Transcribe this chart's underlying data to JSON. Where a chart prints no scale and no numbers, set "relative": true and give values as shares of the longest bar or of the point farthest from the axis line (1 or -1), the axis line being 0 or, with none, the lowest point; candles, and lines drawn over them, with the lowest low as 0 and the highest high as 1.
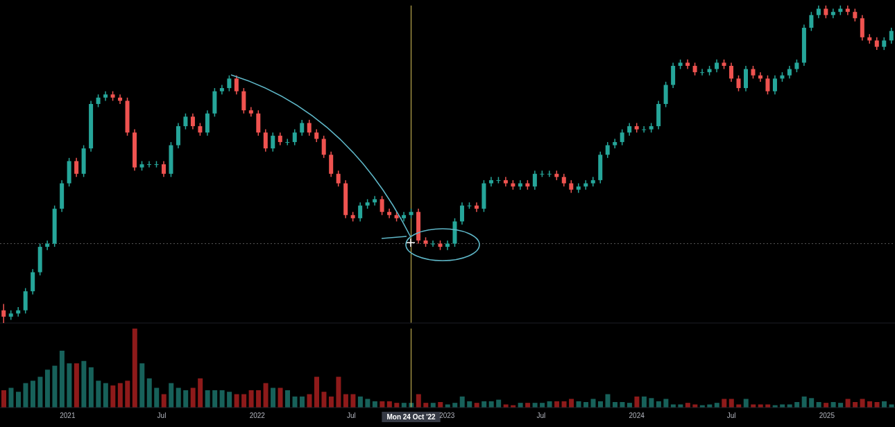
{
  "chart_data": [
    {
      "type": "candlestick",
      "relative": true,
      "x": [
        "2020-08-31",
        "2020-09-14",
        "2020-09-28",
        "2020-10-12",
        "2020-10-26",
        "2020-11-09",
        "2020-11-23",
        "2020-12-07",
        "2020-12-21",
        "2021-01-04",
        "2021-01-18",
        "2021-02-01",
        "2021-02-15",
        "2021-03-01",
        "2021-03-15",
        "2021-03-29",
        "2021-04-12",
        "2021-04-26",
        "2021-05-10",
        "2021-05-24",
        "2021-06-07",
        "2021-06-21",
        "2021-07-05",
        "2021-07-19",
        "2021-08-02",
        "2021-08-16",
        "2021-08-30",
        "2021-09-13",
        "2021-09-27",
        "2021-10-11",
        "2021-10-25",
        "2021-11-08",
        "2021-11-22",
        "2021-12-06",
        "2021-12-20",
        "2022-01-03",
        "2022-01-17",
        "2022-01-31",
        "2022-02-14",
        "2022-02-28",
        "2022-03-14",
        "2022-03-28",
        "2022-04-11",
        "2022-04-25",
        "2022-05-09",
        "2022-05-23",
        "2022-06-06",
        "2022-06-20",
        "2022-07-04",
        "2022-07-18",
        "2022-08-01",
        "2022-08-15",
        "2022-08-29",
        "2022-09-12",
        "2022-09-26",
        "2022-10-10",
        "2022-10-24",
        "2022-11-07",
        "2022-11-21",
        "2022-12-05",
        "2022-12-19",
        "2023-01-02",
        "2023-01-16",
        "2023-01-30",
        "2023-02-13",
        "2023-02-27",
        "2023-03-13",
        "2023-03-27",
        "2023-04-10",
        "2023-04-24",
        "2023-05-08",
        "2023-05-22",
        "2023-06-05",
        "2023-06-19",
        "2023-07-03",
        "2023-07-17",
        "2023-07-31",
        "2023-08-14",
        "2023-08-28",
        "2023-09-11",
        "2023-09-25",
        "2023-10-09",
        "2023-10-23",
        "2023-11-06",
        "2023-11-20",
        "2023-12-04",
        "2023-12-18",
        "2024-01-01",
        "2024-01-15",
        "2024-01-29",
        "2024-02-12",
        "2024-02-26",
        "2024-03-11",
        "2024-03-25",
        "2024-04-08",
        "2024-04-22",
        "2024-05-06",
        "2024-05-20",
        "2024-06-03",
        "2024-06-17",
        "2024-07-01",
        "2024-07-15",
        "2024-07-29",
        "2024-08-12",
        "2024-08-26",
        "2024-09-09",
        "2024-09-23",
        "2024-10-07",
        "2024-10-21",
        "2024-11-04",
        "2024-11-18",
        "2024-12-02",
        "2024-12-16",
        "2024-12-30",
        "2025-01-13",
        "2025-01-27",
        "2025-02-10",
        "2025-02-24",
        "2025-03-10",
        "2025-03-24",
        "2025-04-07",
        "2025-04-21",
        "2025-05-05"
      ],
      "ohlc": [
        [
          0.04,
          0.06,
          0,
          0.02
        ],
        [
          0.02,
          0.04,
          0.01,
          0.03
        ],
        [
          0.03,
          0.05,
          0.02,
          0.04
        ],
        [
          0.04,
          0.11,
          0.03,
          0.1
        ],
        [
          0.1,
          0.17,
          0.09,
          0.16
        ],
        [
          0.16,
          0.25,
          0.15,
          0.24
        ],
        [
          0.24,
          0.26,
          0.23,
          0.25
        ],
        [
          0.25,
          0.37,
          0.24,
          0.36
        ],
        [
          0.36,
          0.45,
          0.35,
          0.44
        ],
        [
          0.44,
          0.52,
          0.43,
          0.51
        ],
        [
          0.51,
          0.52,
          0.46,
          0.47
        ],
        [
          0.47,
          0.56,
          0.46,
          0.55
        ],
        [
          0.55,
          0.7,
          0.54,
          0.69
        ],
        [
          0.69,
          0.72,
          0.68,
          0.71
        ],
        [
          0.71,
          0.73,
          0.7,
          0.72
        ],
        [
          0.72,
          0.73,
          0.7,
          0.71
        ],
        [
          0.71,
          0.72,
          0.69,
          0.7
        ],
        [
          0.7,
          0.71,
          0.59,
          0.6
        ],
        [
          0.6,
          0.61,
          0.48,
          0.49
        ],
        [
          0.49,
          0.51,
          0.48,
          0.5
        ],
        [
          0.5,
          0.51,
          0.49,
          0.5
        ],
        [
          0.5,
          0.51,
          0.49,
          0.5
        ],
        [
          0.5,
          0.51,
          0.46,
          0.47
        ],
        [
          0.47,
          0.57,
          0.46,
          0.56
        ],
        [
          0.56,
          0.63,
          0.55,
          0.62
        ],
        [
          0.62,
          0.66,
          0.61,
          0.65
        ],
        [
          0.65,
          0.66,
          0.61,
          0.62
        ],
        [
          0.62,
          0.63,
          0.59,
          0.6
        ],
        [
          0.6,
          0.67,
          0.59,
          0.66
        ],
        [
          0.66,
          0.74,
          0.65,
          0.73
        ],
        [
          0.73,
          0.75,
          0.72,
          0.74
        ],
        [
          0.74,
          0.78,
          0.73,
          0.77
        ],
        [
          0.77,
          0.78,
          0.72,
          0.73
        ],
        [
          0.73,
          0.74,
          0.66,
          0.67
        ],
        [
          0.67,
          0.68,
          0.65,
          0.66
        ],
        [
          0.66,
          0.67,
          0.59,
          0.6
        ],
        [
          0.6,
          0.61,
          0.54,
          0.55
        ],
        [
          0.55,
          0.6,
          0.54,
          0.59
        ],
        [
          0.59,
          0.6,
          0.56,
          0.57
        ],
        [
          0.57,
          0.58,
          0.56,
          0.57
        ],
        [
          0.57,
          0.61,
          0.56,
          0.6
        ],
        [
          0.6,
          0.64,
          0.59,
          0.63
        ],
        [
          0.63,
          0.64,
          0.59,
          0.6
        ],
        [
          0.6,
          0.61,
          0.57,
          0.58
        ],
        [
          0.58,
          0.59,
          0.52,
          0.53
        ],
        [
          0.53,
          0.54,
          0.46,
          0.47
        ],
        [
          0.47,
          0.48,
          0.43,
          0.44
        ],
        [
          0.44,
          0.45,
          0.33,
          0.34
        ],
        [
          0.34,
          0.35,
          0.32,
          0.33
        ],
        [
          0.33,
          0.38,
          0.32,
          0.37
        ],
        [
          0.37,
          0.39,
          0.36,
          0.38
        ],
        [
          0.38,
          0.4,
          0.37,
          0.39
        ],
        [
          0.39,
          0.4,
          0.34,
          0.35
        ],
        [
          0.35,
          0.36,
          0.33,
          0.34
        ],
        [
          0.34,
          0.35,
          0.32,
          0.33
        ],
        [
          0.33,
          0.35,
          0.32,
          0.34
        ],
        [
          0.34,
          0.36,
          0.33,
          0.35
        ],
        [
          0.35,
          0.36,
          0.25,
          0.26
        ],
        [
          0.26,
          0.27,
          0.24,
          0.25
        ],
        [
          0.25,
          0.26,
          0.24,
          0.25
        ],
        [
          0.25,
          0.26,
          0.23,
          0.24
        ],
        [
          0.24,
          0.26,
          0.23,
          0.25
        ],
        [
          0.25,
          0.33,
          0.24,
          0.32
        ],
        [
          0.32,
          0.38,
          0.31,
          0.37
        ],
        [
          0.37,
          0.38,
          0.36,
          0.37
        ],
        [
          0.37,
          0.38,
          0.35,
          0.36
        ],
        [
          0.36,
          0.45,
          0.35,
          0.44
        ],
        [
          0.44,
          0.46,
          0.43,
          0.45
        ],
        [
          0.45,
          0.46,
          0.44,
          0.45
        ],
        [
          0.45,
          0.46,
          0.43,
          0.44
        ],
        [
          0.44,
          0.45,
          0.42,
          0.43
        ],
        [
          0.43,
          0.45,
          0.42,
          0.44
        ],
        [
          0.44,
          0.45,
          0.42,
          0.43
        ],
        [
          0.43,
          0.48,
          0.42,
          0.47
        ],
        [
          0.47,
          0.48,
          0.46,
          0.47
        ],
        [
          0.47,
          0.48,
          0.46,
          0.47
        ],
        [
          0.47,
          0.48,
          0.45,
          0.46
        ],
        [
          0.46,
          0.47,
          0.43,
          0.44
        ],
        [
          0.44,
          0.45,
          0.41,
          0.42
        ],
        [
          0.42,
          0.44,
          0.41,
          0.43
        ],
        [
          0.43,
          0.45,
          0.42,
          0.44
        ],
        [
          0.44,
          0.46,
          0.43,
          0.45
        ],
        [
          0.45,
          0.54,
          0.44,
          0.53
        ],
        [
          0.53,
          0.57,
          0.52,
          0.56
        ],
        [
          0.56,
          0.58,
          0.55,
          0.57
        ],
        [
          0.57,
          0.61,
          0.56,
          0.6
        ],
        [
          0.6,
          0.63,
          0.59,
          0.62
        ],
        [
          0.62,
          0.63,
          0.6,
          0.61
        ],
        [
          0.61,
          0.62,
          0.6,
          0.61
        ],
        [
          0.61,
          0.63,
          0.6,
          0.62
        ],
        [
          0.62,
          0.7,
          0.61,
          0.69
        ],
        [
          0.69,
          0.76,
          0.68,
          0.75
        ],
        [
          0.75,
          0.82,
          0.74,
          0.81
        ],
        [
          0.81,
          0.83,
          0.8,
          0.82
        ],
        [
          0.82,
          0.83,
          0.8,
          0.81
        ],
        [
          0.81,
          0.82,
          0.78,
          0.79
        ],
        [
          0.79,
          0.8,
          0.78,
          0.79
        ],
        [
          0.79,
          0.81,
          0.78,
          0.8
        ],
        [
          0.8,
          0.83,
          0.79,
          0.82
        ],
        [
          0.82,
          0.83,
          0.8,
          0.81
        ],
        [
          0.81,
          0.82,
          0.76,
          0.77
        ],
        [
          0.77,
          0.78,
          0.73,
          0.74
        ],
        [
          0.74,
          0.81,
          0.73,
          0.8
        ],
        [
          0.8,
          0.81,
          0.77,
          0.78
        ],
        [
          0.78,
          0.79,
          0.76,
          0.77
        ],
        [
          0.77,
          0.78,
          0.72,
          0.73
        ],
        [
          0.73,
          0.78,
          0.72,
          0.77
        ],
        [
          0.77,
          0.79,
          0.76,
          0.78
        ],
        [
          0.78,
          0.81,
          0.77,
          0.8
        ],
        [
          0.8,
          0.83,
          0.79,
          0.82
        ],
        [
          0.82,
          0.94,
          0.81,
          0.93
        ],
        [
          0.93,
          0.98,
          0.92,
          0.97
        ],
        [
          0.97,
          1,
          0.96,
          0.99
        ],
        [
          0.99,
          1,
          0.96,
          0.97
        ],
        [
          0.97,
          0.99,
          0.96,
          0.98
        ],
        [
          0.98,
          1,
          0.97,
          0.99
        ],
        [
          0.99,
          1,
          0.97,
          0.98
        ],
        [
          0.98,
          0.99,
          0.95,
          0.96
        ],
        [
          0.96,
          0.97,
          0.89,
          0.9
        ],
        [
          0.9,
          0.91,
          0.88,
          0.89
        ],
        [
          0.89,
          0.9,
          0.86,
          0.87
        ],
        [
          0.87,
          0.9,
          0.86,
          0.89
        ],
        [
          0.89,
          0.93,
          0.88,
          0.92
        ]
      ],
      "colors": [
        "#ef5350",
        "#26a69a",
        "#26a69a",
        "#26a69a",
        "#26a69a",
        "#26a69a",
        "#26a69a",
        "#26a69a",
        "#26a69a",
        "#26a69a",
        "#ef5350",
        "#26a69a",
        "#26a69a",
        "#26a69a",
        "#26a69a",
        "#ef5350",
        "#ef5350",
        "#ef5350",
        "#ef5350",
        "#26a69a",
        "#26a69a",
        "#26a69a",
        "#ef5350",
        "#26a69a",
        "#26a69a",
        "#26a69a",
        "#ef5350",
        "#ef5350",
        "#26a69a",
        "#26a69a",
        "#26a69a",
        "#26a69a",
        "#ef5350",
        "#ef5350",
        "#ef5350",
        "#ef5350",
        "#ef5350",
        "#26a69a",
        "#ef5350",
        "#26a69a",
        "#26a69a",
        "#26a69a",
        "#ef5350",
        "#ef5350",
        "#ef5350",
        "#ef5350",
        "#ef5350",
        "#ef5350",
        "#ef5350",
        "#26a69a",
        "#26a69a",
        "#26a69a",
        "#ef5350",
        "#ef5350",
        "#ef5350",
        "#26a69a",
        "#26a69a",
        "#ef5350",
        "#ef5350",
        "#26a69a",
        "#ef5350",
        "#26a69a",
        "#26a69a",
        "#26a69a",
        "#26a69a",
        "#ef5350",
        "#26a69a",
        "#26a69a",
        "#26a69a",
        "#ef5350",
        "#ef5350",
        "#26a69a",
        "#ef5350",
        "#26a69a",
        "#26a69a",
        "#26a69a",
        "#ef5350",
        "#ef5350",
        "#ef5350",
        "#26a69a",
        "#26a69a",
        "#26a69a",
        "#26a69a",
        "#26a69a",
        "#26a69a",
        "#26a69a",
        "#26a69a",
        "#ef5350",
        "#26a69a",
        "#26a69a",
        "#26a69a",
        "#26a69a",
        "#26a69a",
        "#26a69a",
        "#ef5350",
        "#ef5350",
        "#26a69a",
        "#26a69a",
        "#26a69a",
        "#ef5350",
        "#ef5350",
        "#ef5350",
        "#26a69a",
        "#ef5350",
        "#ef5350",
        "#ef5350",
        "#26a69a",
        "#26a69a",
        "#26a69a",
        "#26a69a",
        "#26a69a",
        "#26a69a",
        "#26a69a",
        "#ef5350",
        "#26a69a",
        "#26a69a",
        "#ef5350",
        "#ef5350",
        "#ef5350",
        "#ef5350",
        "#ef5350",
        "#26a69a",
        "#26a69a"
      ],
      "xlim": [
        "2020-08-24",
        "2025-05-12"
      ],
      "tick_labels": false,
      "ref_lines": [
        {
          "axis": "x",
          "value": "2022-10-24",
          "color": "#d8c25a"
        },
        {
          "axis": "y",
          "value": 0.25,
          "color": "#555555",
          "line_style": "dotted"
        }
      ]
    },
    {
      "type": "bar",
      "relative": true,
      "x": [
        "2020-08-31",
        "2020-09-14",
        "2020-09-28",
        "2020-10-12",
        "2020-10-26",
        "2020-11-09",
        "2020-11-23",
        "2020-12-07",
        "2020-12-21",
        "2021-01-04",
        "2021-01-18",
        "2021-02-01",
        "2021-02-15",
        "2021-03-01",
        "2021-03-15",
        "2021-03-29",
        "2021-04-12",
        "2021-04-26",
        "2021-05-10",
        "2021-05-24",
        "2021-06-07",
        "2021-06-21",
        "2021-07-05",
        "2021-07-19",
        "2021-08-02",
        "2021-08-16",
        "2021-08-30",
        "2021-09-13",
        "2021-09-27",
        "2021-10-11",
        "2021-10-25",
        "2021-11-08",
        "2021-11-22",
        "2021-12-06",
        "2021-12-20",
        "2022-01-03",
        "2022-01-17",
        "2022-01-31",
        "2022-02-14",
        "2022-02-28",
        "2022-03-14",
        "2022-03-28",
        "2022-04-11",
        "2022-04-25",
        "2022-05-09",
        "2022-05-23",
        "2022-06-06",
        "2022-06-20",
        "2022-07-04",
        "2022-07-18",
        "2022-08-01",
        "2022-08-15",
        "2022-08-29",
        "2022-09-12",
        "2022-09-26",
        "2022-10-10",
        "2022-10-24",
        "2022-11-07",
        "2022-11-21",
        "2022-12-05",
        "2022-12-19",
        "2023-01-02",
        "2023-01-16",
        "2023-01-30",
        "2023-02-13",
        "2023-02-27",
        "2023-03-13",
        "2023-03-27",
        "2023-04-10",
        "2023-04-24",
        "2023-05-08",
        "2023-05-22",
        "2023-06-05",
        "2023-06-19",
        "2023-07-03",
        "2023-07-17",
        "2023-07-31",
        "2023-08-14",
        "2023-08-28",
        "2023-09-11",
        "2023-09-25",
        "2023-10-09",
        "2023-10-23",
        "2023-11-06",
        "2023-11-20",
        "2023-12-04",
        "2023-12-18",
        "2024-01-01",
        "2024-01-15",
        "2024-01-29",
        "2024-02-12",
        "2024-02-26",
        "2024-03-11",
        "2024-03-25",
        "2024-04-08",
        "2024-04-22",
        "2024-05-06",
        "2024-05-20",
        "2024-06-03",
        "2024-06-17",
        "2024-07-01",
        "2024-07-15",
        "2024-07-29",
        "2024-08-12",
        "2024-08-26",
        "2024-09-09",
        "2024-09-23",
        "2024-10-07",
        "2024-10-21",
        "2024-11-04",
        "2024-11-18",
        "2024-12-02",
        "2024-12-16",
        "2024-12-30",
        "2025-01-13",
        "2025-01-27",
        "2025-02-10",
        "2025-02-24",
        "2025-03-10",
        "2025-03-24",
        "2025-04-07",
        "2025-04-21",
        "2025-05-05"
      ],
      "xlim": [
        "2020-08-24",
        "2025-05-12"
      ],
      "xticks": [
        {
          "value": "2021-01-01",
          "label": "2021"
        },
        {
          "value": "2021-07-01",
          "label": "Jul"
        },
        {
          "value": "2022-01-01",
          "label": "2022"
        },
        {
          "value": "2022-07-01",
          "label": "Jul"
        },
        {
          "value": "2023-01-01",
          "label": "2023"
        },
        {
          "value": "2023-07-01",
          "label": "Jul"
        },
        {
          "value": "2024-01-01",
          "label": "2024"
        },
        {
          "value": "2024-07-01",
          "label": "Jul"
        },
        {
          "value": "2025-01-01",
          "label": "2025"
        }
      ],
      "tick_labels": "x",
      "ref_lines": [
        {
          "axis": "x",
          "value": "2022-10-24",
          "label": "Mon 24 Oct '22",
          "color": "#d8c25a"
        }
      ],
      "values": [
        0.22,
        0.25,
        0.2,
        0.31,
        0.34,
        0.39,
        0.48,
        0.53,
        0.72,
        0.56,
        0.56,
        0.59,
        0.51,
        0.34,
        0.31,
        0.28,
        0.31,
        0.34,
        1,
        0.56,
        0.37,
        0.25,
        0.17,
        0.31,
        0.25,
        0.22,
        0.25,
        0.37,
        0.22,
        0.22,
        0.22,
        0.2,
        0.17,
        0.17,
        0.22,
        0.22,
        0.31,
        0.25,
        0.25,
        0.22,
        0.14,
        0.14,
        0.17,
        0.39,
        0.2,
        0.14,
        0.39,
        0.17,
        0.17,
        0.14,
        0.11,
        0.08,
        0.08,
        0.08,
        0.06,
        0.06,
        0.06,
        0.17,
        0.06,
        0.06,
        0.07,
        0.04,
        0.06,
        0.14,
        0.08,
        0.06,
        0.08,
        0.08,
        0.1,
        0.04,
        0.03,
        0.06,
        0.06,
        0.06,
        0.06,
        0.08,
        0.08,
        0.08,
        0.11,
        0.08,
        0.07,
        0.11,
        0.08,
        0.17,
        0.07,
        0.07,
        0.06,
        0.14,
        0.14,
        0.12,
        0.08,
        0.11,
        0.04,
        0.04,
        0.06,
        0.04,
        0.03,
        0.04,
        0.06,
        0.11,
        0.11,
        0.04,
        0.11,
        0.04,
        0.04,
        0.04,
        0.03,
        0.04,
        0.04,
        0.07,
        0.14,
        0.12,
        0.07,
        0.06,
        0.07,
        0.06,
        0.11,
        0.07,
        0.11,
        0.08,
        0.07,
        0.08,
        0.04
      ],
      "colors": [
        "#8e1a1a",
        "#17615a",
        "#17615a",
        "#17615a",
        "#17615a",
        "#17615a",
        "#17615a",
        "#17615a",
        "#17615a",
        "#17615a",
        "#8e1a1a",
        "#17615a",
        "#17615a",
        "#17615a",
        "#17615a",
        "#8e1a1a",
        "#8e1a1a",
        "#8e1a1a",
        "#8e1a1a",
        "#17615a",
        "#17615a",
        "#17615a",
        "#8e1a1a",
        "#17615a",
        "#17615a",
        "#17615a",
        "#8e1a1a",
        "#8e1a1a",
        "#17615a",
        "#17615a",
        "#17615a",
        "#17615a",
        "#8e1a1a",
        "#8e1a1a",
        "#8e1a1a",
        "#8e1a1a",
        "#8e1a1a",
        "#17615a",
        "#8e1a1a",
        "#17615a",
        "#17615a",
        "#17615a",
        "#8e1a1a",
        "#8e1a1a",
        "#8e1a1a",
        "#8e1a1a",
        "#8e1a1a",
        "#8e1a1a",
        "#8e1a1a",
        "#17615a",
        "#17615a",
        "#17615a",
        "#8e1a1a",
        "#8e1a1a",
        "#8e1a1a",
        "#17615a",
        "#17615a",
        "#8e1a1a",
        "#8e1a1a",
        "#17615a",
        "#8e1a1a",
        "#17615a",
        "#17615a",
        "#17615a",
        "#17615a",
        "#8e1a1a",
        "#17615a",
        "#17615a",
        "#17615a",
        "#8e1a1a",
        "#8e1a1a",
        "#17615a",
        "#8e1a1a",
        "#17615a",
        "#17615a",
        "#17615a",
        "#8e1a1a",
        "#8e1a1a",
        "#8e1a1a",
        "#17615a",
        "#17615a",
        "#17615a",
        "#17615a",
        "#17615a",
        "#17615a",
        "#17615a",
        "#17615a",
        "#8e1a1a",
        "#17615a",
        "#17615a",
        "#17615a",
        "#17615a",
        "#17615a",
        "#17615a",
        "#8e1a1a",
        "#8e1a1a",
        "#17615a",
        "#17615a",
        "#17615a",
        "#8e1a1a",
        "#8e1a1a",
        "#8e1a1a",
        "#17615a",
        "#8e1a1a",
        "#8e1a1a",
        "#8e1a1a",
        "#17615a",
        "#17615a",
        "#17615a",
        "#17615a",
        "#17615a",
        "#17615a",
        "#17615a",
        "#8e1a1a",
        "#17615a",
        "#17615a",
        "#8e1a1a",
        "#8e1a1a",
        "#8e1a1a",
        "#8e1a1a",
        "#8e1a1a",
        "#17615a",
        "#17615a"
      ]
    }
  ]
}
